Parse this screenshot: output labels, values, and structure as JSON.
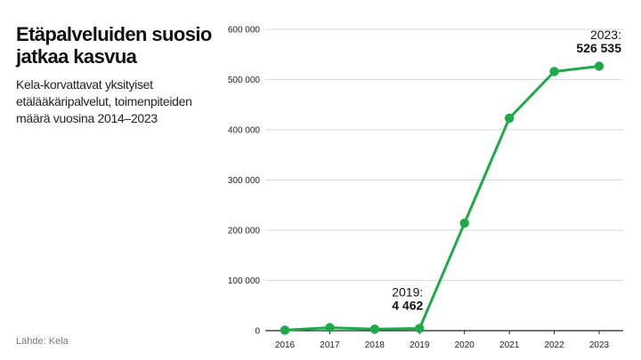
{
  "header": {
    "title": "Etäpalveluiden suosio jatkaa kasvua",
    "subtitle": "Kela-korvattavat yksityiset etälääkäripalvelut, toimenpiteiden määrä vuosina 2014–2023"
  },
  "footer": {
    "source": "Lähde: Kela"
  },
  "colors": {
    "series": "#1faa4a",
    "grid": "#d9d9d9",
    "axis": "#222222"
  },
  "chart_data": {
    "type": "line",
    "title": "Etäpalveluiden suosio jatkaa kasvua",
    "xlabel": "",
    "ylabel": "",
    "x": [
      "2016",
      "2017",
      "2018",
      "2019",
      "2020",
      "2021",
      "2022",
      "2023"
    ],
    "series": [
      {
        "values": [
          1000,
          6000,
          3000,
          4462,
          214000,
          423000,
          516000,
          526535
        ]
      }
    ],
    "ylim": [
      0,
      600000
    ],
    "yticks": [
      0,
      100000,
      200000,
      300000,
      400000,
      500000,
      600000
    ],
    "ytick_labels": [
      "0",
      "100 000",
      "200 000",
      "300 000",
      "400 000",
      "500 000",
      "600 000"
    ],
    "grid": true,
    "legend": "none",
    "annotations": [
      {
        "x": "2019",
        "label": "2019:",
        "value": "4 462"
      },
      {
        "x": "2023",
        "label": "2023:",
        "value": "526 535"
      }
    ]
  }
}
